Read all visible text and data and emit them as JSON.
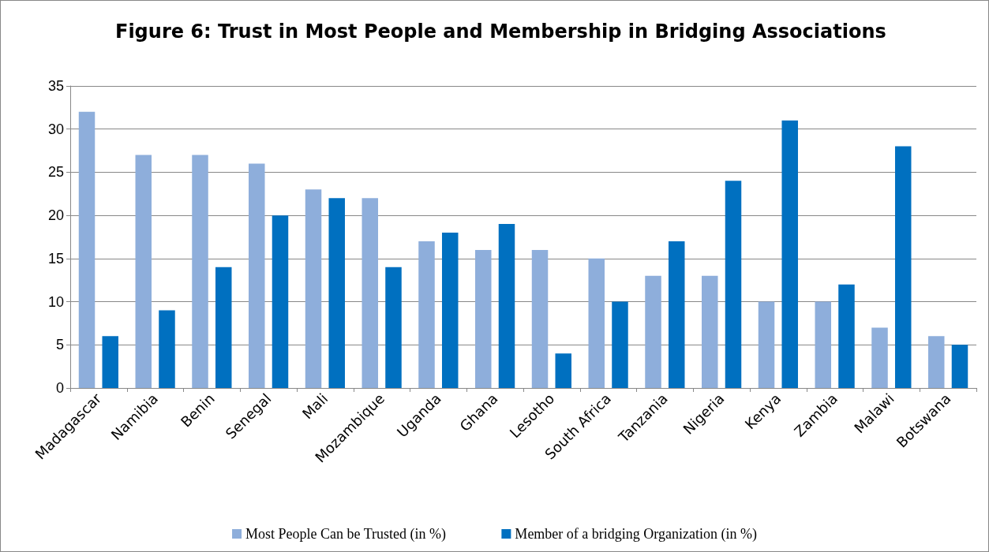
{
  "chart_data": {
    "type": "bar",
    "title": "Figure 6: Trust in Most People and Membership in Bridging Associations",
    "categories": [
      "Madagascar",
      "Namibia",
      "Benin",
      "Senegal",
      "Mali",
      "Mozambique",
      "Uganda",
      "Ghana",
      "Lesotho",
      "South Africa",
      "Tanzania",
      "Nigeria",
      "Kenya",
      "Zambia",
      "Malawi",
      "Botswana"
    ],
    "series": [
      {
        "name": "Most People Can be Trusted (in %)",
        "color": "#8eaedb",
        "values": [
          32,
          27,
          27,
          26,
          23,
          22,
          17,
          16,
          16,
          15,
          13,
          13,
          10,
          10,
          7,
          6
        ]
      },
      {
        "name": "Member of a bridging Organization (in %)",
        "color": "#0070c0",
        "values": [
          6,
          9,
          14,
          20,
          22,
          14,
          18,
          19,
          4,
          10,
          17,
          24,
          31,
          12,
          28,
          5
        ]
      }
    ],
    "ylim": [
      0,
      35
    ],
    "yticks": [
      0,
      5,
      10,
      15,
      20,
      25,
      30,
      35
    ],
    "grid": "y",
    "legend": "bottom"
  }
}
